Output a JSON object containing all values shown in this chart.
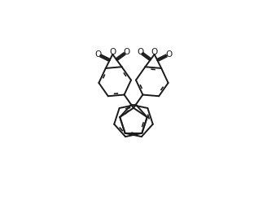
{
  "background": "#ffffff",
  "line_color": "#1a1a1a",
  "line_width": 1.4,
  "fig_width": 3.28,
  "fig_height": 2.62,
  "dpi": 100,
  "xlim": [
    -1.7,
    1.7
  ],
  "ylim": [
    -1.45,
    1.45
  ]
}
